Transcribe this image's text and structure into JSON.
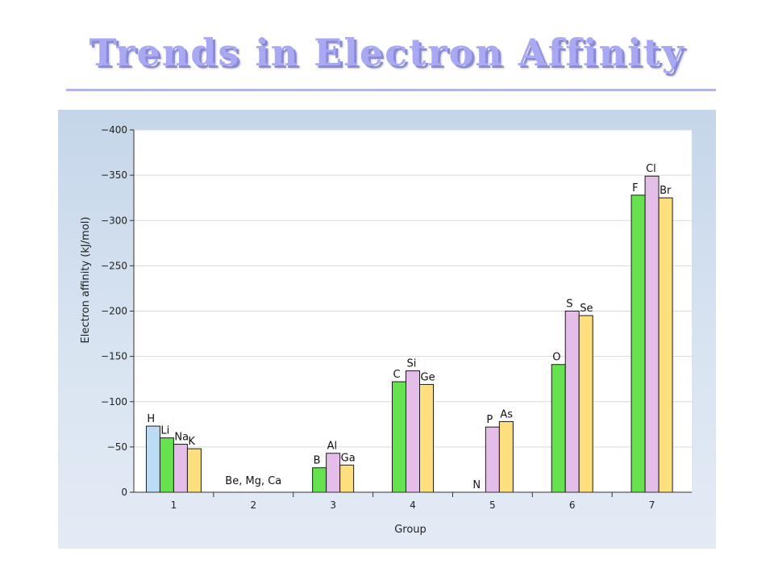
{
  "slide": {
    "title": "Trends in Electron Affinity"
  },
  "colors": {
    "group1_h": "#bcdcf5",
    "green": "#66e24e",
    "pink": "#e5bde9",
    "yellow": "#fde07d"
  },
  "chart_data": {
    "type": "bar",
    "title": "",
    "xlabel": "Group",
    "ylabel": "Electron affinity (kJ/mol)",
    "ylim": [
      0,
      -400
    ],
    "yticks": [
      "0",
      "−50",
      "−100",
      "−150",
      "−200",
      "−250",
      "−300",
      "−350",
      "−400"
    ],
    "ytick_values": [
      0,
      -50,
      -100,
      -150,
      -200,
      -250,
      -300,
      -350,
      -400
    ],
    "grid": true,
    "categories": [
      "1",
      "2",
      "3",
      "4",
      "5",
      "6",
      "7"
    ],
    "groups": [
      {
        "group": "1",
        "bars": [
          {
            "element": "H",
            "value": -73,
            "color": "#bcdcf5"
          },
          {
            "element": "Li",
            "value": -60,
            "color": "#66e24e"
          },
          {
            "element": "Na",
            "value": -53,
            "color": "#e5bde9"
          },
          {
            "element": "K",
            "value": -48,
            "color": "#fde07d"
          }
        ]
      },
      {
        "group": "2",
        "bars": [],
        "note": "Be, Mg, Ca"
      },
      {
        "group": "3",
        "bars": [
          {
            "element": "B",
            "value": -27,
            "color": "#66e24e"
          },
          {
            "element": "Al",
            "value": -43,
            "color": "#e5bde9"
          },
          {
            "element": "Ga",
            "value": -30,
            "color": "#fde07d"
          }
        ]
      },
      {
        "group": "4",
        "bars": [
          {
            "element": "C",
            "value": -122,
            "color": "#66e24e"
          },
          {
            "element": "Si",
            "value": -134,
            "color": "#e5bde9"
          },
          {
            "element": "Ge",
            "value": -119,
            "color": "#fde07d"
          }
        ]
      },
      {
        "group": "5",
        "bars": [
          {
            "element": "N",
            "value": 0,
            "color": "#66e24e"
          },
          {
            "element": "P",
            "value": -72,
            "color": "#e5bde9"
          },
          {
            "element": "As",
            "value": -78,
            "color": "#fde07d"
          }
        ]
      },
      {
        "group": "6",
        "bars": [
          {
            "element": "O",
            "value": -141,
            "color": "#66e24e"
          },
          {
            "element": "S",
            "value": -200,
            "color": "#e5bde9"
          },
          {
            "element": "Se",
            "value": -195,
            "color": "#fde07d"
          }
        ]
      },
      {
        "group": "7",
        "bars": [
          {
            "element": "F",
            "value": -328,
            "color": "#66e24e"
          },
          {
            "element": "Cl",
            "value": -349,
            "color": "#e5bde9"
          },
          {
            "element": "Br",
            "value": -325,
            "color": "#fde07d"
          }
        ]
      }
    ]
  }
}
